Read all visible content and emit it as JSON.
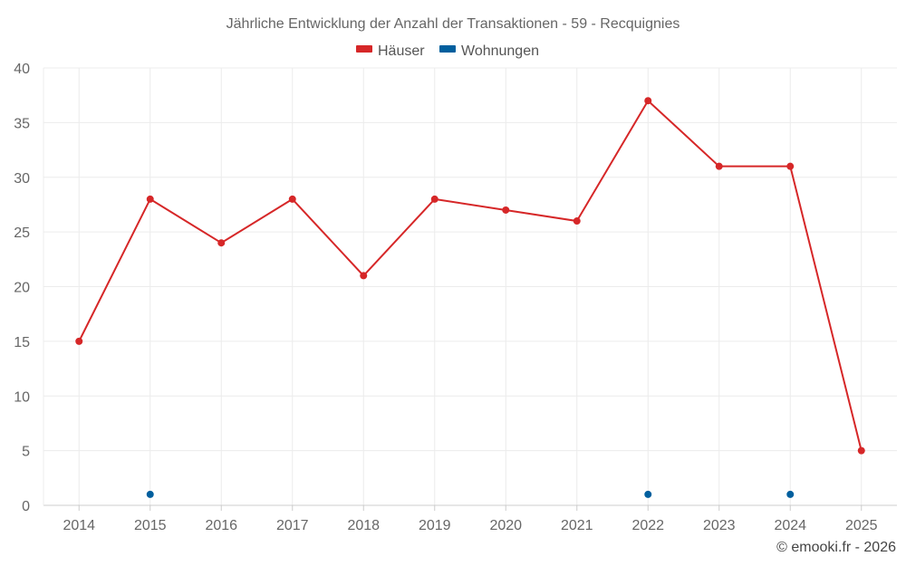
{
  "chart_data": {
    "type": "line",
    "title": "Jährliche Entwicklung der Anzahl der Transaktionen - 59 - Recquignies",
    "categories": [
      "2014",
      "2015",
      "2016",
      "2017",
      "2018",
      "2019",
      "2020",
      "2021",
      "2022",
      "2023",
      "2024",
      "2025"
    ],
    "ylim": [
      0,
      40
    ],
    "yticks": [
      0,
      5,
      10,
      15,
      20,
      25,
      30,
      35,
      40
    ],
    "grid": true,
    "legend_position": "top-center",
    "series": [
      {
        "name": "Häuser",
        "color": "#d62728",
        "values": [
          15,
          28,
          24,
          28,
          21,
          28,
          27,
          26,
          37,
          31,
          31,
          5
        ],
        "line": true
      },
      {
        "name": "Wohnungen",
        "color": "#005f9e",
        "values": [
          null,
          1,
          null,
          null,
          null,
          null,
          null,
          null,
          1,
          null,
          1,
          null
        ],
        "line": false
      }
    ]
  },
  "credit": "© emooki.fr - 2026"
}
